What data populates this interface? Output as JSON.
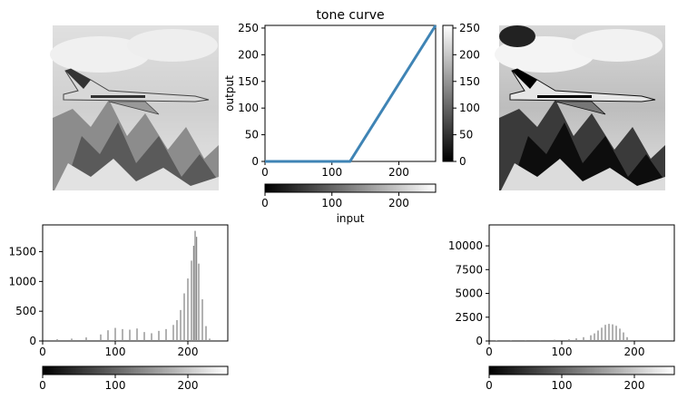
{
  "chart_data": [
    {
      "id": "tone_curve",
      "type": "line",
      "title": "tone curve",
      "xlabel": "input",
      "ylabel": "output",
      "xlim": [
        0,
        255
      ],
      "ylim": [
        0,
        255
      ],
      "xticks": [
        0,
        100,
        200
      ],
      "yticks": [
        0,
        50,
        100,
        150,
        200,
        250
      ],
      "series": [
        {
          "x": [
            0,
            127,
            255
          ],
          "y": [
            0,
            0,
            255
          ],
          "color": "#3f84b5"
        }
      ],
      "colorbar_right": {
        "ticks": [
          0,
          50,
          100,
          150,
          200,
          250
        ]
      },
      "colorbar_bottom": {
        "ticks": [
          0,
          100,
          200
        ]
      }
    },
    {
      "id": "hist_input",
      "type": "bar",
      "xlim": [
        0,
        255
      ],
      "ylim": [
        0,
        1950
      ],
      "xticks": [
        0,
        100,
        200
      ],
      "yticks": [
        0,
        500,
        1000,
        1500
      ],
      "bar_color": "#888888",
      "bins": [
        20,
        40,
        60,
        80,
        90,
        100,
        110,
        120,
        130,
        140,
        150,
        160,
        170,
        180,
        185,
        190,
        195,
        200,
        205,
        208,
        210,
        212,
        215,
        220,
        225,
        230
      ],
      "counts": [
        30,
        40,
        60,
        110,
        180,
        220,
        200,
        190,
        210,
        150,
        130,
        170,
        200,
        270,
        350,
        520,
        800,
        1050,
        1350,
        1600,
        1850,
        1750,
        1300,
        700,
        250,
        40
      ]
    },
    {
      "id": "hist_output",
      "type": "bar",
      "xlim": [
        0,
        255
      ],
      "ylim": [
        0,
        12200
      ],
      "xticks": [
        0,
        100,
        200
      ],
      "yticks": [
        0,
        2500,
        5000,
        7500,
        10000
      ],
      "bar_color": "#888888",
      "bins": [
        10,
        30,
        50,
        70,
        90,
        110,
        120,
        130,
        140,
        145,
        150,
        155,
        160,
        165,
        170,
        175,
        180,
        185,
        190
      ],
      "counts": [
        60,
        80,
        90,
        100,
        130,
        180,
        280,
        400,
        600,
        800,
        1100,
        1400,
        1700,
        1800,
        1750,
        1600,
        1300,
        900,
        400
      ]
    }
  ],
  "images": {
    "left_alt": "",
    "right_alt": ""
  },
  "colorbar_ticks": {
    "hist_input": [
      0,
      100,
      200
    ],
    "hist_output": [
      0,
      100,
      200
    ]
  }
}
